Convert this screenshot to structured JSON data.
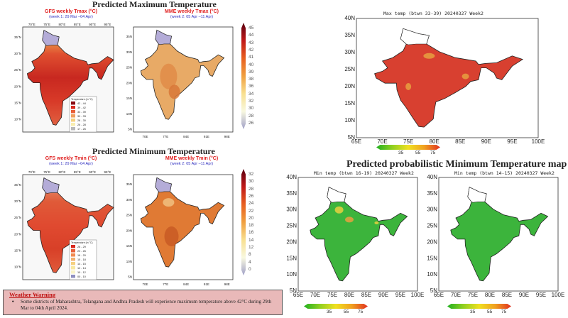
{
  "left": {
    "max_title": "Predicted Maximum Temperature",
    "min_title": "Predicted Minimum Temperature",
    "gfs_max": {
      "title": "GFS weekly Tmax (°C)",
      "period": "(week 1: 29 Mar –04 Apr)",
      "legend_title": "Temperature (in °C)",
      "legend": [
        "42 - 44",
        "39 - 42",
        "33 - 39",
        "30 - 33",
        "28 - 30",
        "26 - 28",
        "17 - 26"
      ],
      "legend_colors": [
        "#8b0a14",
        "#d8281e",
        "#e8603a",
        "#f0a060",
        "#f5d080",
        "#f8eeb0",
        "#b8b8b8"
      ]
    },
    "mme_max": {
      "title": "MME weekly Tmax (°C)",
      "period": "(week 2: 05 Apr –11 Apr)",
      "colorbar": [
        "45",
        "44",
        "43",
        "42",
        "41",
        "40",
        "39",
        "38",
        "36",
        "34",
        "32",
        "30",
        "28",
        "26"
      ]
    },
    "gfs_min": {
      "title": "GFS weekly Tmin (°C)",
      "period": "(week 1: 29 Mar –04 Apr)",
      "legend_title": "Temperature (in °C)",
      "legend": [
        "26 - 29",
        "20 - 26",
        "18 - 20",
        "15 - 18",
        "14 - 15",
        "12 - 14",
        "10 - 12",
        "00 - 10"
      ],
      "legend_colors": [
        "#d8281e",
        "#e8603a",
        "#f08a50",
        "#f0b070",
        "#f5d080",
        "#f8e8a0",
        "#faf4c8",
        "#9090c0"
      ]
    },
    "mme_min": {
      "title": "MME weekly Tmin (°C)",
      "period": "(week 2: 05 Apr –11 Apr)",
      "colorbar": [
        "32",
        "30",
        "28",
        "26",
        "24",
        "22",
        "20",
        "18",
        "16",
        "14",
        "12",
        "8",
        "4",
        "0"
      ]
    },
    "gfs_lon": [
      "70°E",
      "75°E",
      "80°E",
      "85°E",
      "90°E",
      "95°E"
    ],
    "gfs_lat": [
      "35°N",
      "30°N",
      "25°N",
      "20°N",
      "15°N",
      "10°N"
    ],
    "mme_lon": [
      "70E",
      "77E",
      "84E",
      "91E",
      "98E"
    ],
    "mme_lat": [
      "35N",
      "30N",
      "25N",
      "20N",
      "15N",
      "10N",
      "5N"
    ]
  },
  "warning": {
    "title": "Weather Warning",
    "text": "Some districts of Maharashtra, Telangana and Andhra Pradesh will experience maximum temperature above 42°C during 29th Mar to 04th April 2024."
  },
  "right": {
    "max_caption": "Max temp (btwn 33-39) 20240327 Week2",
    "min_title": "Predicted probabilistic Minimum Temperature map",
    "min1_caption": "Min temp (btwn 16-19) 20240327 Week2",
    "min2_caption": "Min temp (btwn 14-15) 20240327 Week2",
    "lat": [
      "40N",
      "35N",
      "30N",
      "25N",
      "20N",
      "15N",
      "10N",
      "5N"
    ],
    "lon": [
      "65E",
      "70E",
      "75E",
      "80E",
      "85E",
      "90E",
      "95E",
      "100E"
    ],
    "colorbar": [
      "35",
      "55",
      "75"
    ],
    "colors": {
      "high": "#d84030",
      "mid": "#e8a040",
      "low": "#3cb43c"
    }
  }
}
